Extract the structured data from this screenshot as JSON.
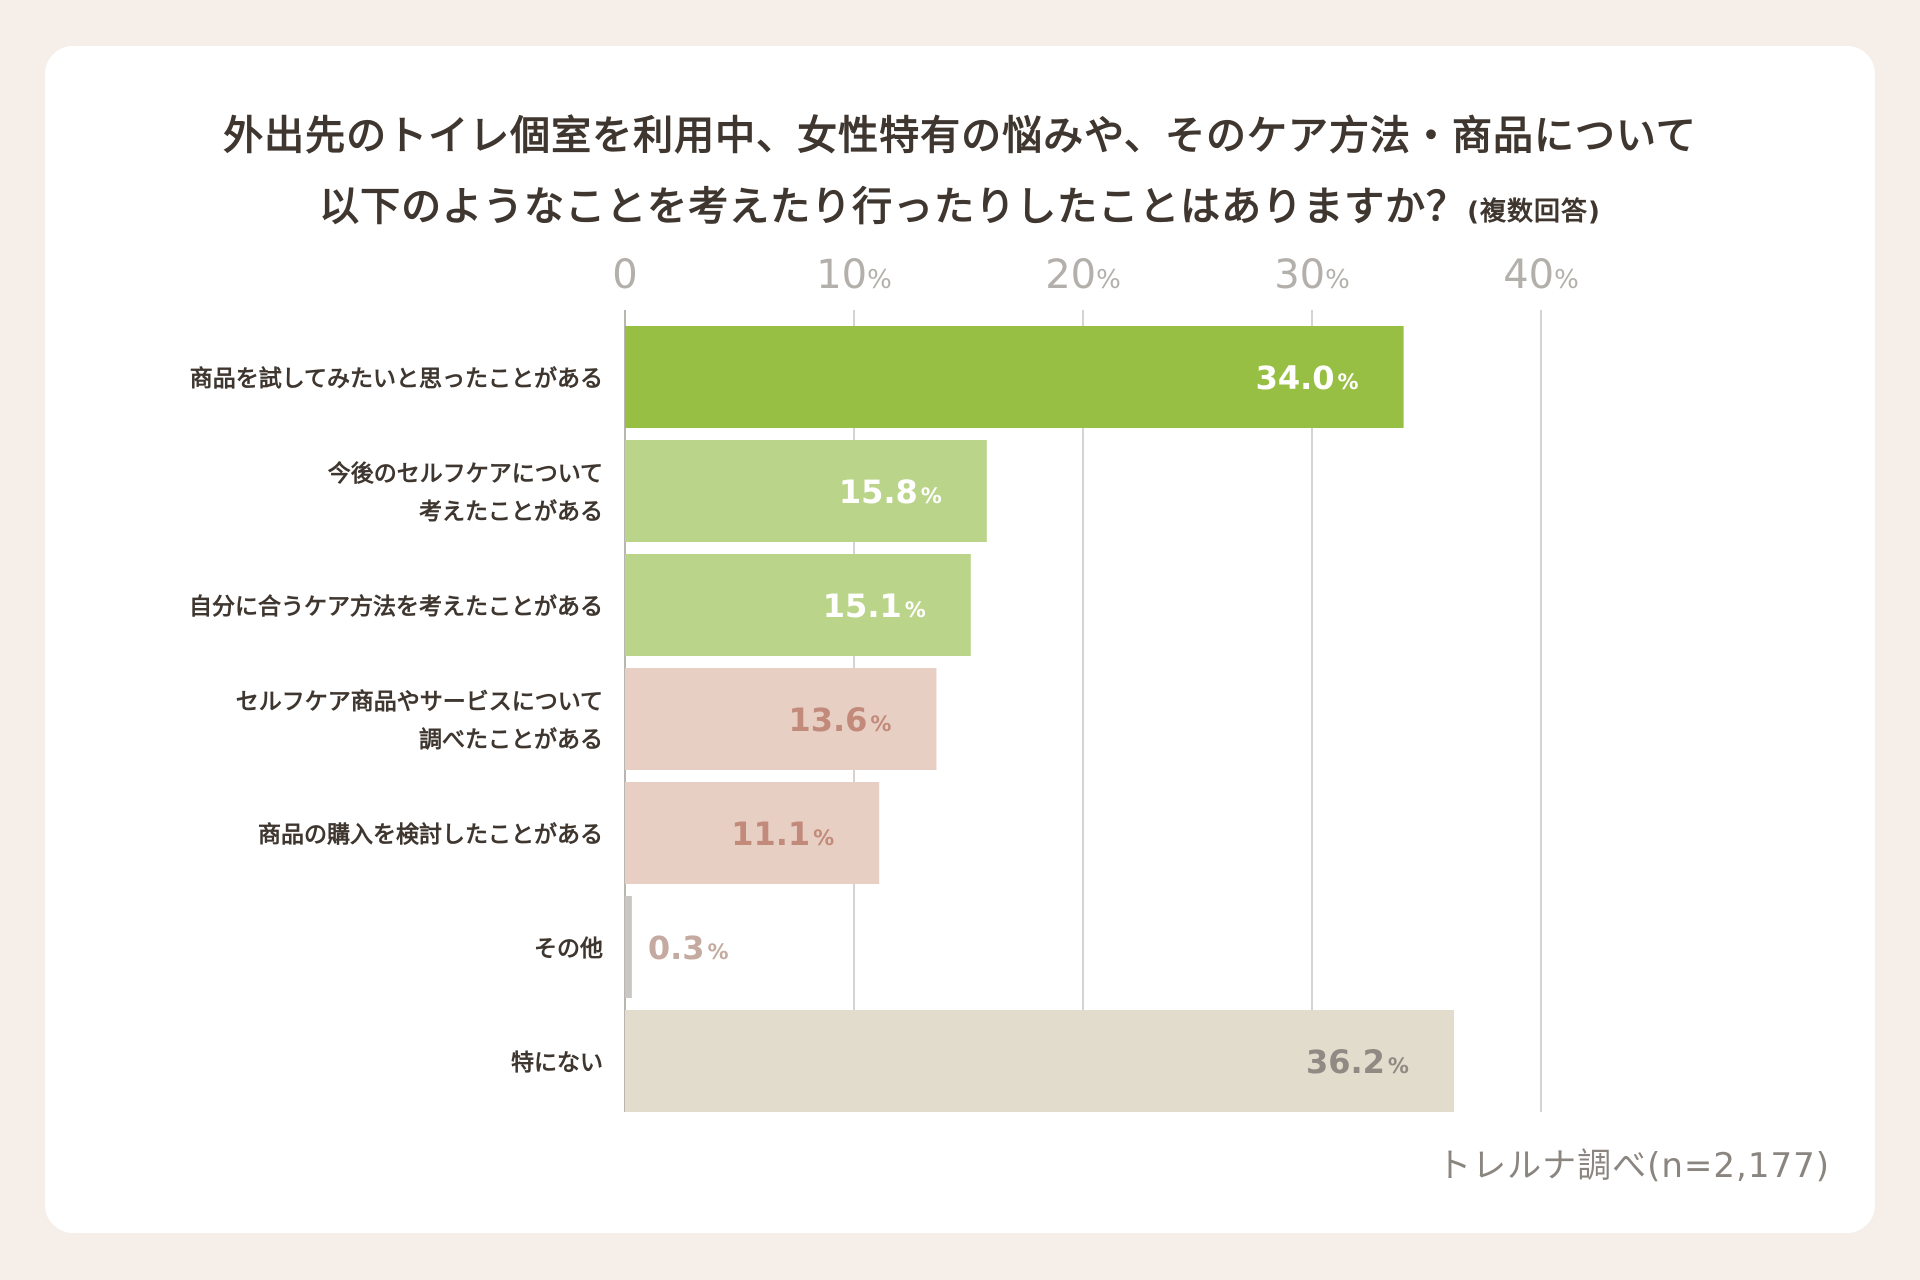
{
  "title": {
    "line1": "外出先のトイレ個室を利用中、女性特有の悩みや、そのケア方法・商品について",
    "line2": "以下のようなことを考えたり行ったりしたことはありますか？",
    "note": "(複数回答)"
  },
  "source": "トレルナ調べ(n=2,177)",
  "chart_data": {
    "type": "bar",
    "orientation": "horizontal",
    "categories": [
      "商品を試してみたいと思ったことがある",
      "今後のセルフケアについて\n考えたことがある",
      "自分に合うケア方法を考えたことがある",
      "セルフケア商品やサービスについて\n調べたことがある",
      "商品の購入を検討したことがある",
      "その他",
      "特にない"
    ],
    "values": [
      34.0,
      15.8,
      15.1,
      13.6,
      11.1,
      0.3,
      36.2
    ],
    "value_labels": [
      "34.0",
      "15.8",
      "15.1",
      "13.6",
      "11.1",
      "0.3",
      "36.2"
    ],
    "value_unit": "%",
    "bar_colors": [
      "#97bf43",
      "#bad48a",
      "#bad48a",
      "#e8cfc4",
      "#e8cfc4",
      "#c9c6c3",
      "#e2dccc"
    ],
    "label_colors": [
      "#ffffff",
      "#ffffff",
      "#ffffff",
      "#c28a7a",
      "#c28a7a",
      "#c4aaa0",
      "#8f8a83"
    ],
    "xaxis": {
      "ticks": [
        0,
        10,
        20,
        30,
        40
      ],
      "tick_labels": [
        "0",
        "10",
        "20",
        "30",
        "40"
      ],
      "tick_unit": "%"
    },
    "xlim": [
      0,
      40
    ],
    "grid": true
  }
}
